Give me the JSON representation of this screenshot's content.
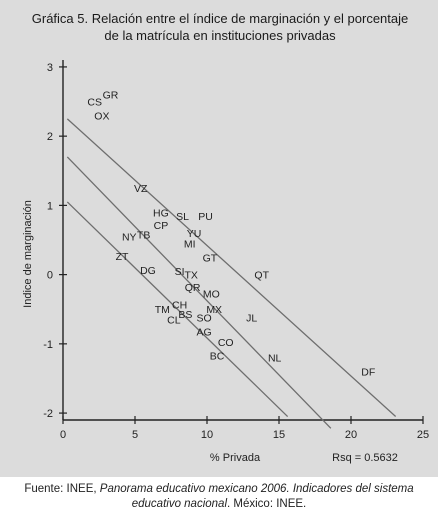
{
  "title_line1": "Gráfica 5. Relación entre el índice de marginación y el porcentaje",
  "title_line2": "de la matrícula en instituciones privadas",
  "caption": {
    "prefix": "Fuente: INEE, ",
    "italic": "Panorama educativo mexicano 2006. Indicadores del sistema educativo nacional",
    "suffix": ". México: INEE."
  },
  "chart_data": {
    "type": "scatter",
    "xlabel": "% Privada",
    "ylabel": "Indice de marginación",
    "annotation": "Rsq = 0.5632",
    "xlim": [
      0,
      25
    ],
    "ylim": [
      -2.1,
      3.1
    ],
    "xticks": [
      0,
      5,
      10,
      15,
      20,
      25
    ],
    "yticks": [
      3,
      2,
      1,
      0,
      -1,
      -2
    ],
    "grid": false,
    "points": [
      {
        "label": "CS",
        "x": 2.2,
        "y": 2.5
      },
      {
        "label": "GR",
        "x": 3.3,
        "y": 2.6
      },
      {
        "label": "OX",
        "x": 2.7,
        "y": 2.3
      },
      {
        "label": "VZ",
        "x": 5.4,
        "y": 1.25
      },
      {
        "label": "HG",
        "x": 6.8,
        "y": 0.9
      },
      {
        "label": "SL",
        "x": 8.3,
        "y": 0.85
      },
      {
        "label": "PU",
        "x": 9.9,
        "y": 0.85
      },
      {
        "label": "CP",
        "x": 6.8,
        "y": 0.72
      },
      {
        "label": "TB",
        "x": 5.6,
        "y": 0.58
      },
      {
        "label": "NY",
        "x": 4.6,
        "y": 0.55
      },
      {
        "label": "YU",
        "x": 9.1,
        "y": 0.6
      },
      {
        "label": "MI",
        "x": 8.8,
        "y": 0.45
      },
      {
        "label": "ZT",
        "x": 4.1,
        "y": 0.27
      },
      {
        "label": "GT",
        "x": 10.2,
        "y": 0.25
      },
      {
        "label": "DG",
        "x": 5.9,
        "y": 0.07
      },
      {
        "label": "SI",
        "x": 8.1,
        "y": 0.05
      },
      {
        "label": "TX",
        "x": 8.9,
        "y": 0.0
      },
      {
        "label": "QT",
        "x": 13.8,
        "y": 0.0
      },
      {
        "label": "QR",
        "x": 9.0,
        "y": -0.18
      },
      {
        "label": "MO",
        "x": 10.3,
        "y": -0.27
      },
      {
        "label": "CH",
        "x": 8.1,
        "y": -0.43
      },
      {
        "label": "TM",
        "x": 6.9,
        "y": -0.5
      },
      {
        "label": "MX",
        "x": 10.5,
        "y": -0.5
      },
      {
        "label": "BS",
        "x": 8.5,
        "y": -0.57
      },
      {
        "label": "CL",
        "x": 7.7,
        "y": -0.65
      },
      {
        "label": "SO",
        "x": 9.8,
        "y": -0.62
      },
      {
        "label": "JL",
        "x": 13.1,
        "y": -0.62
      },
      {
        "label": "AG",
        "x": 9.8,
        "y": -0.82
      },
      {
        "label": "CO",
        "x": 11.3,
        "y": -0.97
      },
      {
        "label": "BC",
        "x": 10.7,
        "y": -1.17
      },
      {
        "label": "NL",
        "x": 14.7,
        "y": -1.2
      },
      {
        "label": "DF",
        "x": 21.2,
        "y": -1.4
      }
    ],
    "lines": [
      {
        "x": [
          0.3,
          23.1
        ],
        "y": [
          2.25,
          -2.05
        ]
      },
      {
        "x": [
          0.3,
          18.6
        ],
        "y": [
          1.7,
          -2.22
        ]
      },
      {
        "x": [
          0.3,
          15.6
        ],
        "y": [
          1.05,
          -2.05
        ]
      }
    ]
  }
}
